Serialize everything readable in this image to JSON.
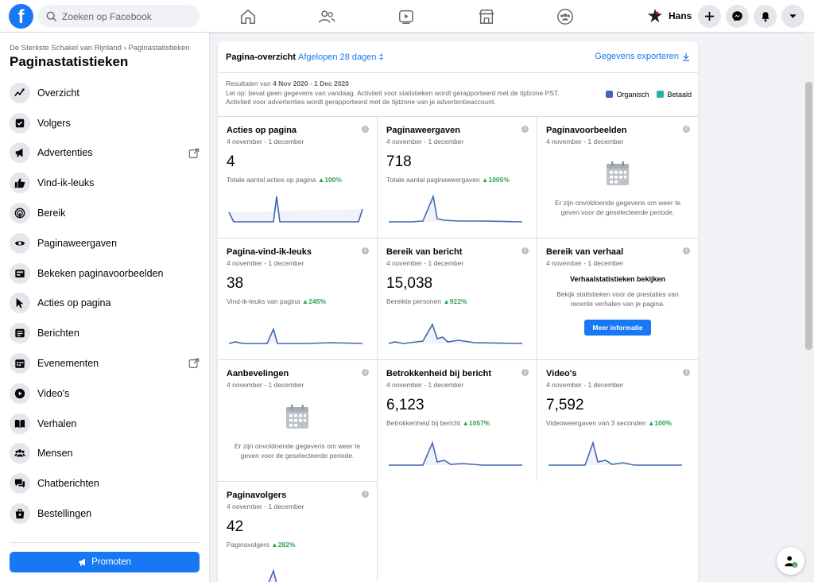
{
  "topbar": {
    "logo": "f",
    "search_placeholder": "Zoeken op Facebook",
    "profile_name": "Hans",
    "nav_icons": [
      "home-icon",
      "friends-icon",
      "watch-icon",
      "marketplace-icon",
      "groups-icon"
    ],
    "actions": [
      "plus-icon",
      "messenger-icon",
      "bell-icon",
      "caret-down-icon"
    ]
  },
  "sidebar": {
    "breadcrumb": "De Sterkste Schakel van Rijnland › Paginastatistieken",
    "title": "Paginastatistieken",
    "items": [
      {
        "label": "Overzicht",
        "icon": "overview-icon"
      },
      {
        "label": "Volgers",
        "icon": "followers-icon"
      },
      {
        "label": "Advertenties",
        "icon": "megaphone-icon",
        "external": true
      },
      {
        "label": "Vind-ik-leuks",
        "icon": "thumbs-up-icon"
      },
      {
        "label": "Bereik",
        "icon": "reach-icon"
      },
      {
        "label": "Paginaweergaven",
        "icon": "eye-icon"
      },
      {
        "label": "Bekeken paginavoorbeelden",
        "icon": "preview-icon"
      },
      {
        "label": "Acties op pagina",
        "icon": "cursor-icon"
      },
      {
        "label": "Berichten",
        "icon": "posts-icon"
      },
      {
        "label": "Evenementen",
        "icon": "calendar-icon",
        "external": true
      },
      {
        "label": "Video's",
        "icon": "video-icon"
      },
      {
        "label": "Verhalen",
        "icon": "stories-icon"
      },
      {
        "label": "Mensen",
        "icon": "people-icon"
      },
      {
        "label": "Chatberichten",
        "icon": "chat-icon"
      },
      {
        "label": "Bestellingen",
        "icon": "orders-icon"
      }
    ],
    "promote_label": "Promoten"
  },
  "overview": {
    "title": "Pagina-overzicht",
    "period": "Afgelopen 28 dagen ‡",
    "export": "Gegevens exporteren",
    "results_prefix": "Resultaten van ",
    "results_from": "4 Nov 2020",
    "results_sep": " - ",
    "results_to": "1 Dec 2020",
    "note1": "Let op: bevat geen gegevens van vandaag. Activiteit voor statistieken wordt gerapporteerd met de tijdzone PST.",
    "note2": "Activiteit voor advertenties wordt gerapporteerd met de tijdzone van je advertentieaccount.",
    "legend": [
      {
        "label": "Organisch",
        "color": "#4267b2"
      },
      {
        "label": "Betaald",
        "color": "#20b2aa"
      }
    ]
  },
  "cards": [
    {
      "title": "Acties op pagina",
      "date": "4 november - 1 december",
      "value": "4",
      "sub": "Totale aantal acties op pagina",
      "change": "100%",
      "series": [
        1,
        0,
        0,
        0,
        0,
        0,
        0,
        0,
        0,
        0,
        0,
        0,
        0,
        0,
        0,
        0,
        0,
        0,
        0,
        0,
        0,
        0,
        0,
        0,
        0,
        0,
        0,
        1
      ],
      "peaks": [
        0,
        1,
        0,
        0,
        0,
        0,
        0,
        0,
        0,
        0,
        0,
        0,
        0,
        0,
        0,
        0,
        0,
        0,
        0,
        0,
        0,
        0,
        0,
        0,
        0,
        0,
        0,
        0
      ]
    },
    {
      "title": "Paginaweergaven",
      "date": "4 november - 1 december",
      "value": "718",
      "sub": "Totale aantal paginaweergaven",
      "change": "1005%"
    },
    {
      "title": "Paginavoorbeelden",
      "date": "4 november - 1 december",
      "empty": "Er zijn onvoldoende gegevens om weer te geven voor de geselecteerde periode."
    },
    {
      "title": "Pagina-vind-ik-leuks",
      "date": "4 november - 1 december",
      "value": "38",
      "sub": "Vind-ik-leuks van pagina",
      "change": "245%"
    },
    {
      "title": "Bereik van bericht",
      "date": "4 november - 1 december",
      "value": "15,038",
      "sub": "Bereikte personen",
      "change": "922%"
    },
    {
      "title": "Bereik van verhaal",
      "date": "4 november - 1 december",
      "story_head": "Verhaalstatistieken bekijken",
      "story_text": "Bekijk statistieken voor de prestaties van recente verhalen van je pagina.",
      "button": "Meer informatie"
    },
    {
      "title": "Aanbevelingen",
      "date": "4 november - 1 december",
      "empty": "Er zijn onvoldoende gegevens om weer te geven voor de geselecteerde periode."
    },
    {
      "title": "Betrokkenheid bij bericht",
      "date": "4 november - 1 december",
      "value": "6,123",
      "sub": "Betrokkenheid bij bericht",
      "change": "1057%"
    },
    {
      "title": "Video's",
      "date": "4 november - 1 december",
      "value": "7,592",
      "sub": "Videoweergaven van 3 seconden",
      "change": "100%"
    },
    {
      "title": "Paginavolgers",
      "date": "4 november - 1 december",
      "value": "42",
      "sub": "Paginavolgers",
      "change": "282%"
    }
  ],
  "colors": {
    "accent": "#1877f2",
    "line": "#4267b2",
    "positive": "#31a24c"
  }
}
